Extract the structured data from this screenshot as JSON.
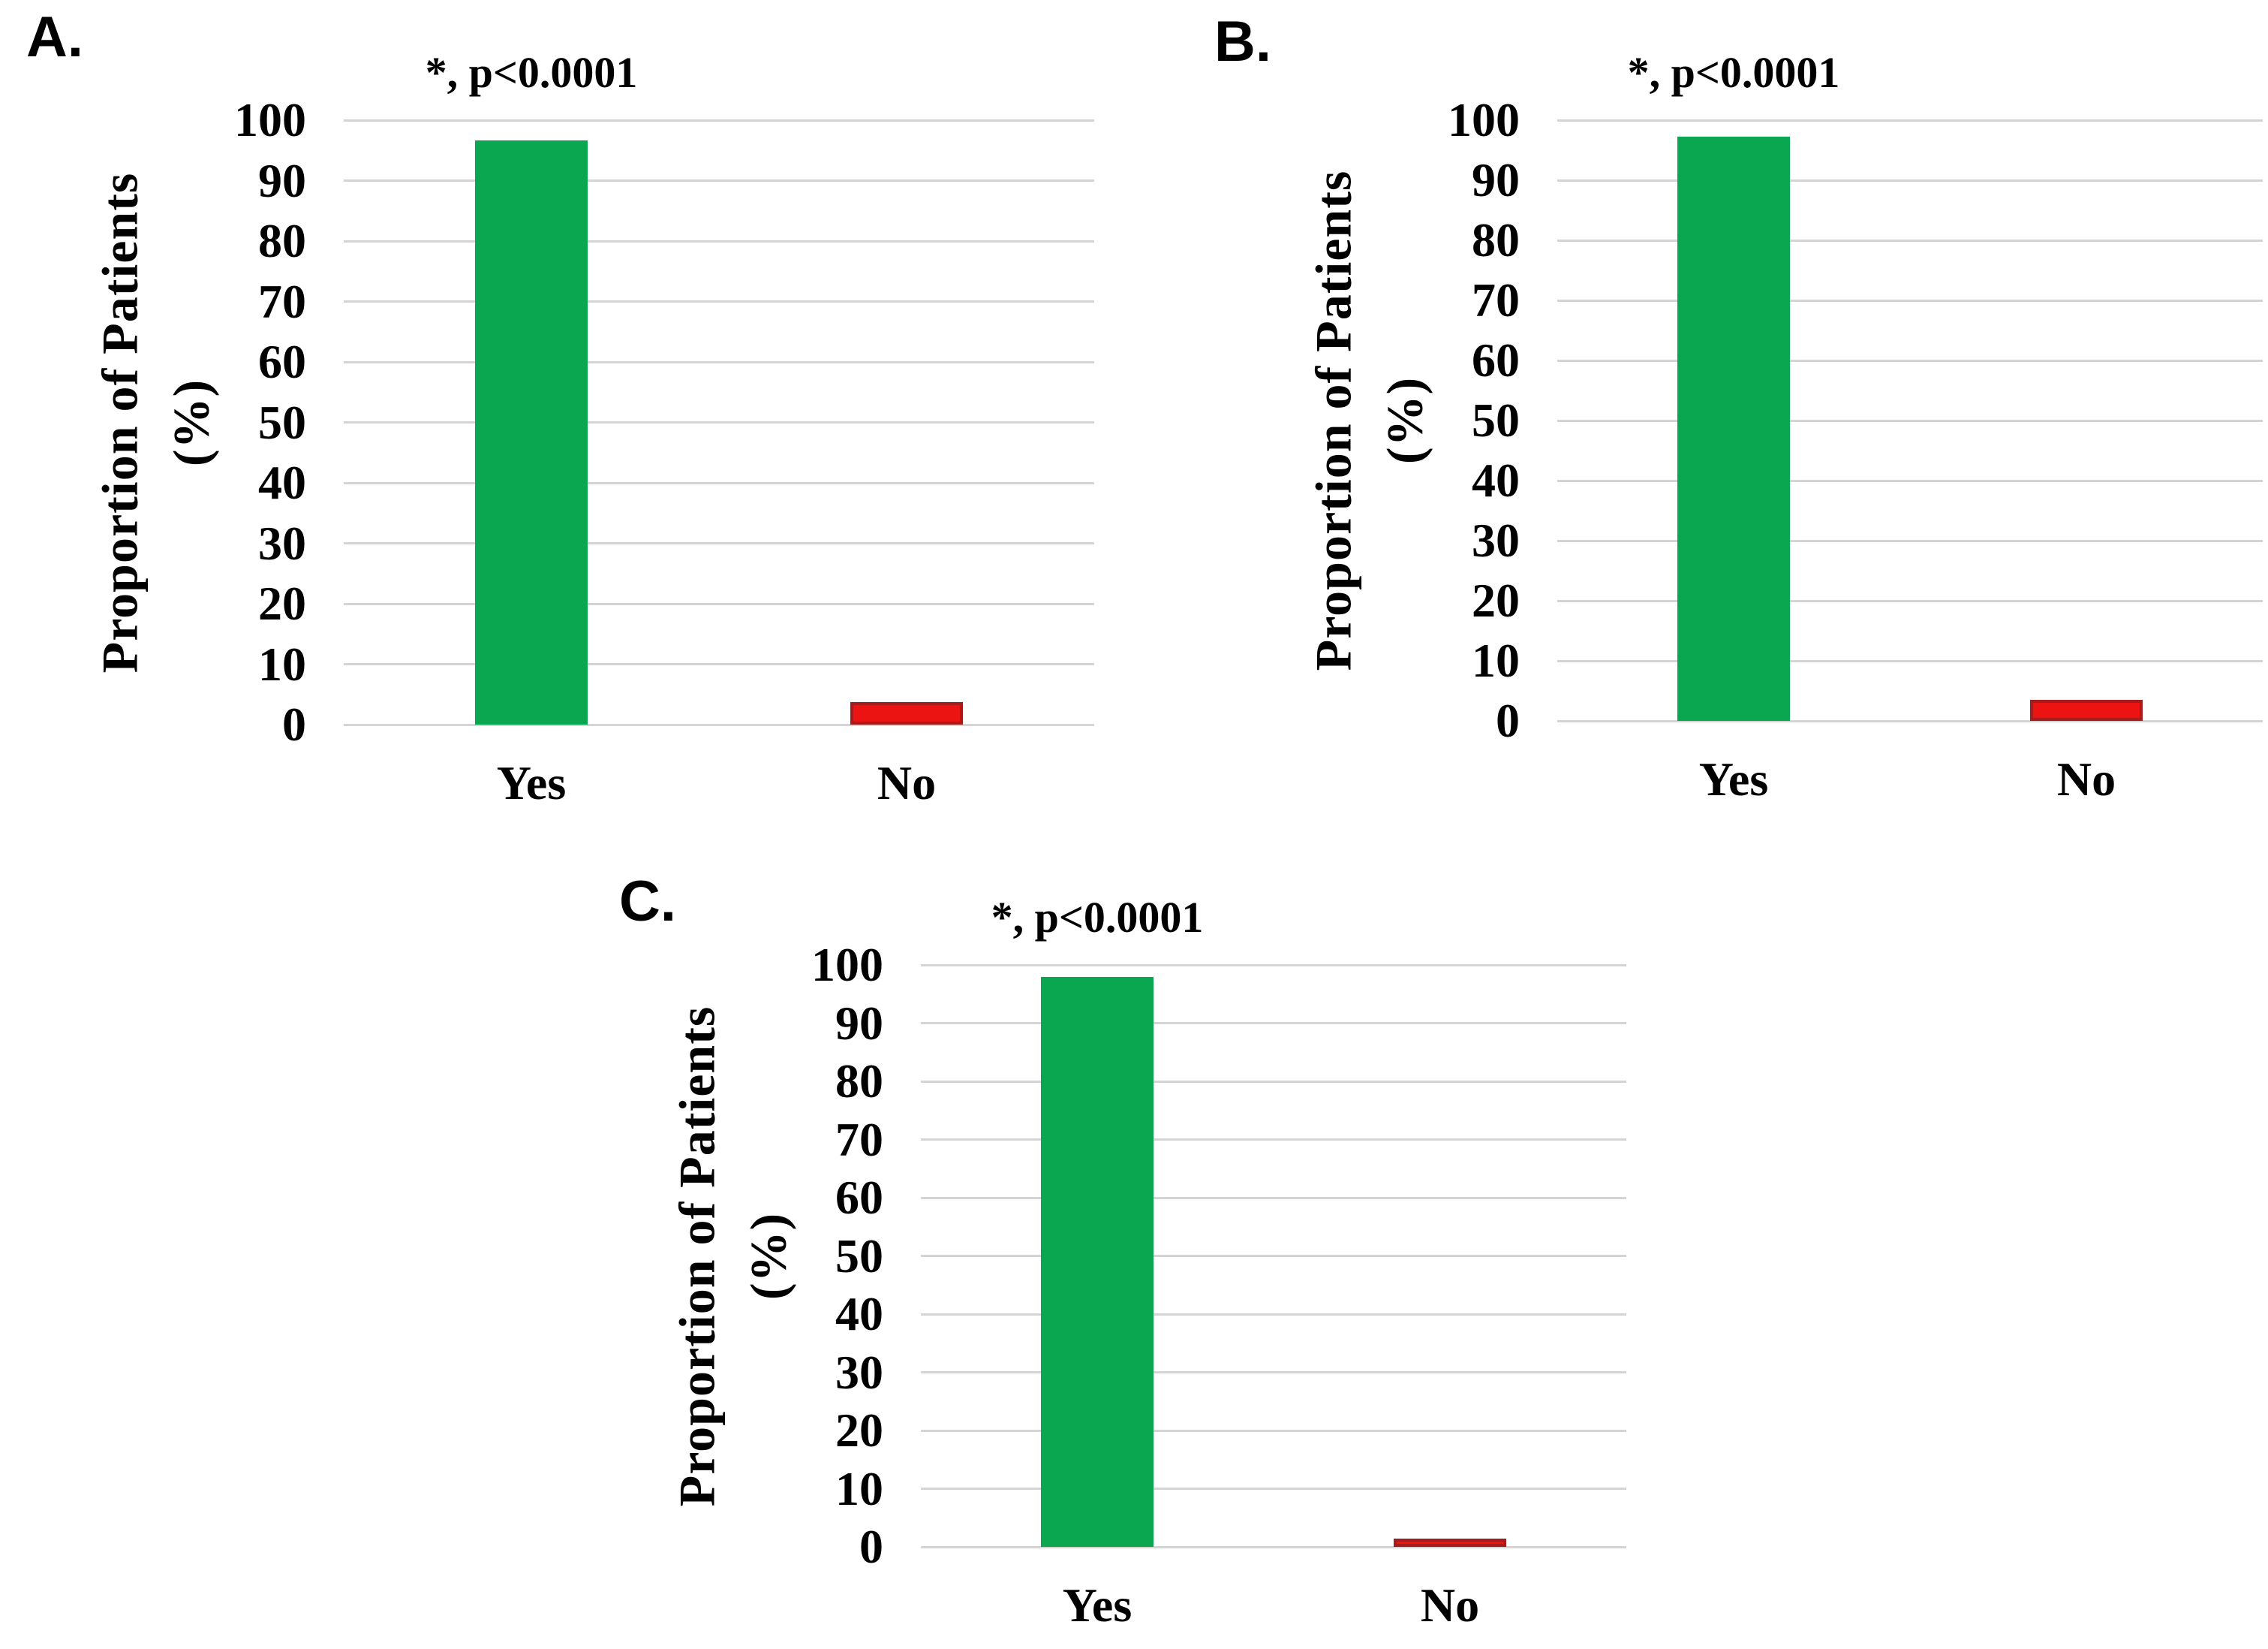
{
  "figure": {
    "background": "#ffffff",
    "colors": {
      "bar_green": "#0ba750",
      "bar_red": "#ec1313",
      "bar_red_border": "#a81b1b",
      "gridline": "#d4d4d4",
      "text": "#000000"
    }
  },
  "chart_data": [
    {
      "type": "bar",
      "panel_label": "A.",
      "annotation": "*, p<0.0001",
      "title": "",
      "categories": [
        "Yes",
        "No"
      ],
      "values": [
        96.6,
        3.7
      ],
      "bar_colors": [
        "#0ba750",
        "#ec1313"
      ],
      "xlabel": "",
      "ylabel_line1": "Proportion of Patients",
      "ylabel_line2": "(%)",
      "ylim": [
        0,
        100
      ],
      "yticks": [
        0,
        10,
        20,
        30,
        40,
        50,
        60,
        70,
        80,
        90,
        100
      ],
      "grid": "horizontal",
      "legend": "none"
    },
    {
      "type": "bar",
      "panel_label": "B.",
      "annotation": "*, p<0.0001",
      "title": "",
      "categories": [
        "Yes",
        "No"
      ],
      "values": [
        97.2,
        3.5
      ],
      "bar_colors": [
        "#0ba750",
        "#ec1313"
      ],
      "xlabel": "",
      "ylabel_line1": "Proportion of Patients",
      "ylabel_line2": "(%)",
      "ylim": [
        0,
        100
      ],
      "yticks": [
        0,
        10,
        20,
        30,
        40,
        50,
        60,
        70,
        80,
        90,
        100
      ],
      "grid": "horizontal",
      "legend": "none"
    },
    {
      "type": "bar",
      "panel_label": "C.",
      "annotation": "*, p<0.0001",
      "title": "",
      "categories": [
        "Yes",
        "No"
      ],
      "values": [
        98.0,
        1.4
      ],
      "bar_colors": [
        "#0ba750",
        "#ec1313"
      ],
      "xlabel": "",
      "ylabel_line1": "Proportion of Patients",
      "ylabel_line2": "(%)",
      "ylim": [
        0,
        100
      ],
      "yticks": [
        0,
        10,
        20,
        30,
        40,
        50,
        60,
        70,
        80,
        90,
        100
      ],
      "grid": "horizontal",
      "legend": "none"
    }
  ]
}
